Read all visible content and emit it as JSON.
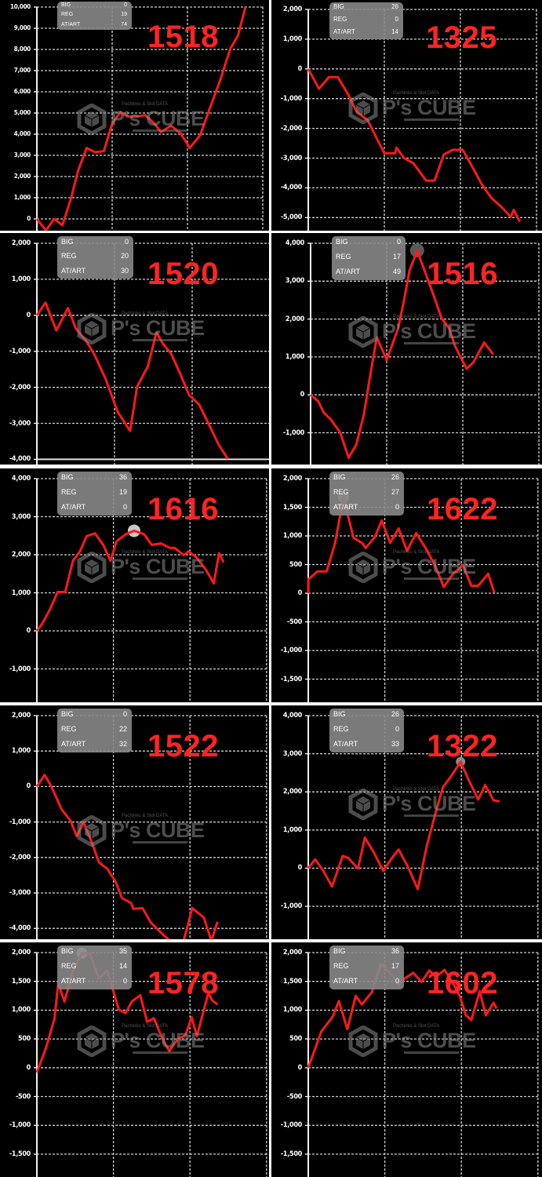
{
  "stats_labels": [
    "BIG",
    "REG",
    "AT/ART"
  ],
  "watermark": {
    "top": "Pachinko & Slot DATA",
    "main": "P's CUBE",
    "sub": "wakuwa2 エンターテインメント"
  },
  "colors": {
    "line": "#ff1a1a",
    "label": "#ff2424",
    "background": "#000000",
    "grid": "#d0d0d0",
    "stats_box": "#878787"
  },
  "chart_data": [
    {
      "type": "line",
      "label": "1518",
      "stats": [
        "0",
        "19",
        "74"
      ],
      "y_ticks": [
        "10,000",
        "9,000",
        "8,000",
        "7,000",
        "6,000",
        "5,000",
        "4,000",
        "3,000",
        "2,000",
        "1,000",
        "0"
      ],
      "ylim": [
        -500,
        10000
      ],
      "grid": true,
      "x": [
        0,
        1.2,
        2.3,
        3.4,
        4.5,
        5.5,
        6.6,
        7.7,
        8.9,
        10,
        11.1,
        12.1,
        13.2,
        14.4,
        15.6,
        16.5,
        17.8,
        19.1,
        20.3,
        21.7,
        22.9,
        24.3,
        25.7,
        26.7,
        27.7
      ],
      "y": [
        0,
        -540,
        0,
        -300,
        940,
        2300,
        3350,
        3150,
        3200,
        4500,
        5050,
        4830,
        4830,
        4900,
        4500,
        4100,
        4400,
        4030,
        3350,
        3960,
        5150,
        6500,
        8040,
        8650,
        10000
      ]
    },
    {
      "type": "line",
      "label": "1325",
      "stats": [
        "26",
        "0",
        "14"
      ],
      "y_ticks": [
        "2,000",
        "1,000",
        "0",
        "-1,000",
        "-2,000",
        "-3,000",
        "-4,000",
        "-5,000"
      ],
      "ylim": [
        -5300,
        2000
      ],
      "grid": true,
      "x": [
        0,
        1.4,
        2.7,
        3.9,
        5.2,
        6.4,
        7.8,
        9,
        10,
        11.4,
        11.6,
        12.6,
        13.8,
        14.7,
        15.5,
        16.6,
        17.8,
        19,
        20.3,
        21.6,
        22.8,
        24,
        25.5,
        26.6,
        27,
        27.8
      ],
      "y": [
        0,
        -670,
        -280,
        -280,
        -840,
        -1460,
        -1720,
        -2340,
        -2840,
        -2840,
        -2650,
        -3000,
        -3170,
        -3480,
        -3760,
        -3760,
        -2880,
        -2720,
        -2720,
        -3310,
        -3880,
        -4320,
        -4670,
        -4980,
        -4740,
        -5140
      ]
    },
    {
      "type": "line",
      "label": "1520",
      "stats": [
        "0",
        "20",
        "30"
      ],
      "y_ticks": [
        "2,000",
        "1,000",
        "0",
        "-1,000",
        "-2,000",
        "-3,000",
        "-4,000"
      ],
      "ylim": [
        -4000,
        2000
      ],
      "grid": true,
      "x": [
        0,
        1.1,
        2.5,
        4,
        5,
        6.4,
        7.4,
        8.8,
        10.4,
        12,
        12.9,
        14.3,
        15.4,
        16.2,
        17.3,
        18.5,
        19.6,
        20.9,
        22.2,
        23.4,
        24.6
      ],
      "y": [
        0,
        350,
        -420,
        200,
        -360,
        -730,
        -1090,
        -1740,
        -2680,
        -3210,
        -1990,
        -1410,
        -470,
        -780,
        -1070,
        -1650,
        -2210,
        -2480,
        -3050,
        -3590,
        -3990
      ]
    },
    {
      "type": "line",
      "label": "1516",
      "stats": [
        "0",
        "17",
        "49"
      ],
      "y_ticks": [
        "4,000",
        "3,000",
        "2,000",
        "1,000",
        "0",
        "-1,000"
      ],
      "ylim": [
        -1800,
        4000
      ],
      "grid": true,
      "highlight_index": 14,
      "x": [
        0,
        1,
        1.7,
        2.7,
        3.9,
        5,
        6,
        7,
        7.8,
        8.7,
        10,
        11.5,
        12.3,
        13,
        14,
        15.1,
        16.1,
        17.2,
        18.2,
        19,
        20.5,
        21.4,
        22.8,
        24
      ],
      "y": [
        0,
        -170,
        -460,
        -660,
        -1000,
        -1660,
        -1310,
        -520,
        480,
        1520,
        920,
        1760,
        2520,
        3280,
        3810,
        3210,
        2660,
        2030,
        1760,
        1280,
        690,
        860,
        1380,
        1070
      ]
    },
    {
      "type": "line",
      "label": "1616",
      "stats": [
        "36",
        "19",
        "0"
      ],
      "y_ticks": [
        "4,000",
        "3,000",
        "2,000",
        "1,000",
        "0",
        "-1,000"
      ],
      "ylim": [
        -1800,
        4000
      ],
      "grid": true,
      "highlight_index": 13,
      "x": [
        0,
        0.7,
        1.7,
        2.7,
        3.7,
        4.7,
        5.6,
        6.5,
        7.6,
        8.7,
        9.6,
        10.4,
        11.6,
        12.7,
        14,
        15,
        16.2,
        17.4,
        18,
        19.2,
        19.8,
        20.8,
        22,
        23.1,
        23.8,
        24.4
      ],
      "y": [
        0,
        190,
        560,
        1020,
        1020,
        1840,
        2080,
        2490,
        2560,
        2250,
        1840,
        2350,
        2540,
        2630,
        2540,
        2260,
        2300,
        2180,
        2180,
        1990,
        2090,
        1940,
        1630,
        1250,
        2040,
        1800
      ]
    },
    {
      "type": "line",
      "label": "1622",
      "stats": [
        "26",
        "27",
        "0"
      ],
      "y_ticks": [
        "2,000",
        "1,500",
        "1,000",
        "500",
        "0",
        "-500",
        "-1,000",
        "-1,500"
      ],
      "ylim": [
        -1900,
        2000
      ],
      "grid": true,
      "highlight_index": 5,
      "x": [
        0,
        0,
        1.2,
        2.4,
        3.5,
        4.6,
        5.9,
        7,
        7.5,
        8.7,
        9.6,
        10.7,
        11.8,
        12.9,
        14.1,
        15.5,
        16.6,
        17.7,
        18.9,
        20.2,
        21.3,
        22.2,
        23.5,
        24.3
      ],
      "y": [
        0,
        240,
        380,
        380,
        880,
        1670,
        970,
        880,
        790,
        980,
        1270,
        880,
        1130,
        740,
        1050,
        750,
        470,
        110,
        340,
        490,
        130,
        130,
        340,
        10
      ]
    },
    {
      "type": "line",
      "label": "1522",
      "stats": [
        "0",
        "22",
        "32"
      ],
      "y_ticks": [
        "2,000",
        "1,000",
        "0",
        "-1,000",
        "-2,000",
        "-3,000",
        "-4,000"
      ],
      "ylim": [
        -4300,
        2000
      ],
      "grid": true,
      "x": [
        0,
        1,
        1.9,
        3.2,
        4.4,
        5.2,
        6.1,
        7.2,
        8.1,
        9.2,
        10.3,
        11.1,
        12.3,
        12.6,
        13.8,
        14.9,
        17.2,
        18.2,
        19.2,
        20.3,
        21.8,
        22.8,
        23.6
      ],
      "y": [
        0,
        330,
        0,
        -630,
        -960,
        -1400,
        -1010,
        -1590,
        -2140,
        -2320,
        -2690,
        -3140,
        -3280,
        -3450,
        -3430,
        -3840,
        -4320,
        -4700,
        -4320,
        -3430,
        -3690,
        -4350,
        -3810
      ]
    },
    {
      "type": "line",
      "label": "1322",
      "stats": [
        "26",
        "0",
        "33"
      ],
      "y_ticks": [
        "4,000",
        "3,000",
        "2,000",
        "1,000",
        "0",
        "-1,000"
      ],
      "ylim": [
        -1800,
        4000
      ],
      "grid": true,
      "highlight_index": 18,
      "x": [
        0,
        0.9,
        2,
        3.1,
        4.5,
        5.2,
        6.5,
        7.4,
        8.6,
        9.8,
        10.8,
        11.8,
        13,
        14.3,
        15.5,
        16.6,
        17.6,
        18.6,
        19.9,
        21,
        22.2,
        23.1,
        24.2,
        25
      ],
      "y": [
        0,
        230,
        -80,
        -480,
        320,
        270,
        -10,
        800,
        400,
        -70,
        230,
        490,
        40,
        -550,
        600,
        1430,
        2130,
        2390,
        2790,
        2290,
        1800,
        2180,
        1780,
        1750
      ]
    },
    {
      "type": "line",
      "label": "1578",
      "stats": [
        "35",
        "14",
        "0"
      ],
      "y_ticks": [
        "2,000",
        "1,500",
        "1,000",
        "500",
        "0",
        "-500",
        "-1,000",
        "-1,500"
      ],
      "ylim": [
        -1900,
        2000
      ],
      "grid": true,
      "highlight_index": 6,
      "x": [
        0,
        1.2,
        2.3,
        2.8,
        3.6,
        4.7,
        5.9,
        6.9,
        8.1,
        9.2,
        10.7,
        11.6,
        12.4,
        13.5,
        14.4,
        15.3,
        16.4,
        17.3,
        18.4,
        19.4,
        20.2,
        20.9,
        22.4,
        22.9,
        23.6
      ],
      "y": [
        -80,
        350,
        850,
        1470,
        1150,
        1680,
        1990,
        1990,
        1550,
        1690,
        1010,
        950,
        1150,
        1260,
        800,
        860,
        500,
        290,
        500,
        560,
        880,
        550,
        1300,
        1170,
        1100
      ]
    },
    {
      "type": "line",
      "label": "1602",
      "stats": [
        "36",
        "17",
        "0"
      ],
      "y_ticks": [
        "2,000",
        "1,500",
        "1,000",
        "500",
        "0",
        "-500",
        "-1,000",
        "-1,500"
      ],
      "ylim": [
        -1900,
        2000
      ],
      "grid": true,
      "x": [
        0,
        0.7,
        1.7,
        3.2,
        4,
        5.1,
        6.2,
        7,
        8.3,
        9.5,
        10.8,
        11.8,
        12.6,
        13.7,
        14.8,
        15.8,
        16.7,
        17.8,
        19,
        19.8,
        20.6,
        21.3,
        22.4,
        23.2,
        24.2,
        24.6
      ],
      "y": [
        0,
        260,
        630,
        890,
        1160,
        670,
        1250,
        1100,
        1310,
        1800,
        1630,
        1450,
        1550,
        1650,
        1490,
        1690,
        1580,
        1700,
        1450,
        1240,
        910,
        830,
        1330,
        910,
        1130,
        1030
      ]
    }
  ]
}
